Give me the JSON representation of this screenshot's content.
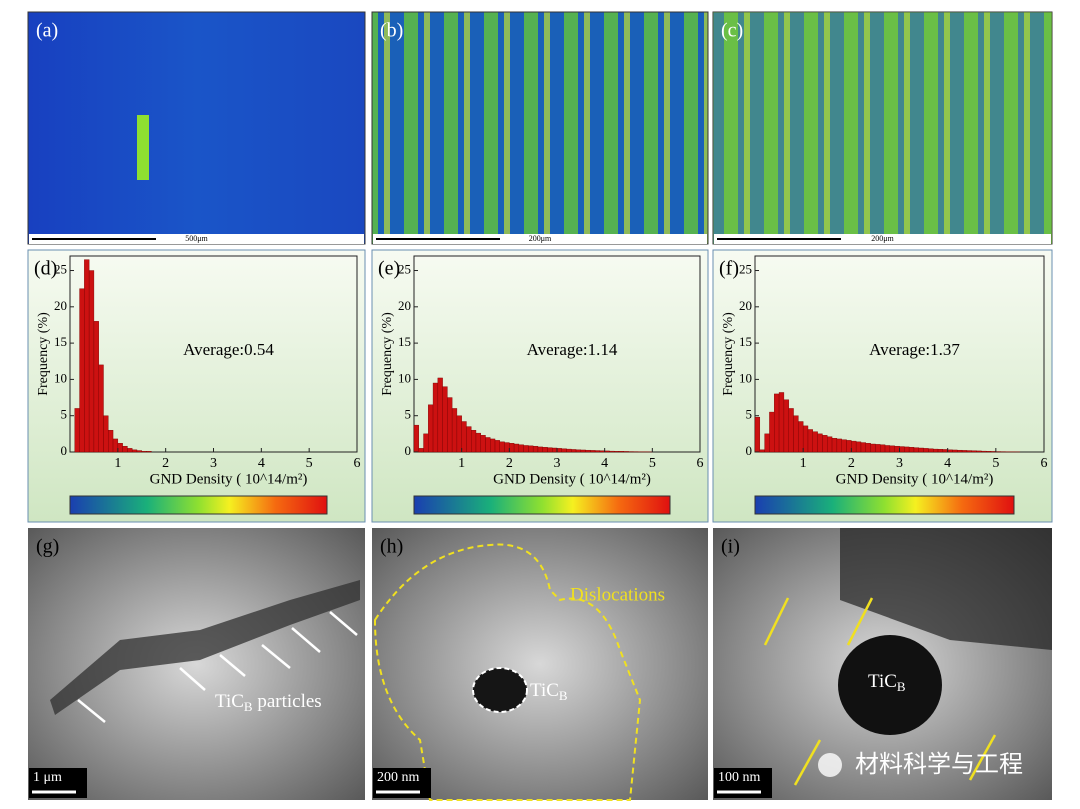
{
  "chart_data": [
    {
      "type": "histogram",
      "panel_label": "(d)",
      "y_label": "Frequency (%)",
      "x_label": "GND Density ( 10^14/m²)",
      "annotation": "Average:0.54",
      "color": "#cc1111",
      "bins": [
        0,
        0.1,
        0.2,
        0.3,
        0.4,
        0.5,
        0.6,
        0.7,
        0.8,
        0.9,
        1,
        1.1,
        1.2,
        1.3,
        1.4,
        1.5,
        1.6,
        1.7,
        1.8,
        1.9,
        2,
        2.1,
        2.2,
        2.3,
        2.4,
        2.5,
        2.6,
        2.7,
        2.8,
        2.9,
        3,
        3.1,
        3.2,
        3.3,
        3.4,
        3.5,
        3.6,
        3.7,
        3.8,
        3.9,
        4,
        4.1,
        4.2,
        4.3,
        4.4,
        4.5,
        4.6,
        4.7,
        4.8,
        4.9,
        5,
        5.1,
        5.2,
        5.3,
        5.4,
        5.5,
        5.6,
        5.7,
        5.8,
        5.9,
        6
      ],
      "values": [
        0,
        6,
        22.5,
        26.5,
        25,
        18,
        12,
        5,
        3,
        1.8,
        1.2,
        0.8,
        0.5,
        0.3,
        0.2,
        0.1,
        0.1,
        0,
        0,
        0,
        0,
        0,
        0,
        0,
        0,
        0,
        0,
        0,
        0,
        0,
        0,
        0,
        0,
        0,
        0,
        0,
        0,
        0,
        0,
        0,
        0,
        0,
        0,
        0,
        0,
        0,
        0,
        0,
        0,
        0,
        0,
        0,
        0,
        0,
        0,
        0,
        0,
        0,
        0,
        0
      ],
      "xlim": [
        0,
        6
      ],
      "xticks": [
        1,
        2,
        3,
        4,
        5,
        6
      ],
      "ylim": [
        0,
        27
      ],
      "yticks": [
        0,
        5,
        10,
        15,
        20,
        25
      ]
    },
    {
      "type": "histogram",
      "panel_label": "(e)",
      "y_label": "Frequency (%)",
      "x_label": "GND Density ( 10^14/m²)",
      "annotation": "Average:1.14",
      "color": "#cc1111",
      "bins": [
        0,
        0.1,
        0.2,
        0.3,
        0.4,
        0.5,
        0.6,
        0.7,
        0.8,
        0.9,
        1,
        1.1,
        1.2,
        1.3,
        1.4,
        1.5,
        1.6,
        1.7,
        1.8,
        1.9,
        2,
        2.1,
        2.2,
        2.3,
        2.4,
        2.5,
        2.6,
        2.7,
        2.8,
        2.9,
        3,
        3.1,
        3.2,
        3.3,
        3.4,
        3.5,
        3.6,
        3.7,
        3.8,
        3.9,
        4,
        4.1,
        4.2,
        4.3,
        4.4,
        4.5,
        4.6,
        4.7,
        4.8,
        4.9,
        5,
        5.1,
        5.2,
        5.3,
        5.4,
        5.5,
        5.6,
        5.7,
        5.8,
        5.9,
        6
      ],
      "values": [
        3.7,
        0.5,
        2.5,
        6.5,
        9.5,
        10.2,
        9,
        7.5,
        6,
        5,
        4.2,
        3.5,
        3,
        2.6,
        2.3,
        2,
        1.8,
        1.6,
        1.4,
        1.3,
        1.2,
        1.1,
        1,
        0.9,
        0.85,
        0.8,
        0.7,
        0.65,
        0.6,
        0.55,
        0.5,
        0.45,
        0.4,
        0.35,
        0.3,
        0.28,
        0.25,
        0.22,
        0.2,
        0.18,
        0.15,
        0.12,
        0.1,
        0.1,
        0.08,
        0.06,
        0.05,
        0.04,
        0.03,
        0.02,
        0,
        0,
        0,
        0,
        0,
        0,
        0,
        0,
        0,
        0
      ],
      "xlim": [
        0,
        6
      ],
      "xticks": [
        1,
        2,
        3,
        4,
        5,
        6
      ],
      "ylim": [
        0,
        27
      ],
      "yticks": [
        0,
        5,
        10,
        15,
        20,
        25
      ]
    },
    {
      "type": "histogram",
      "panel_label": "(f)",
      "y_label": "Frequency (%)",
      "x_label": "GND Density ( 10^14/m²)",
      "annotation": "Average:1.37",
      "color": "#cc1111",
      "bins": [
        0,
        0.1,
        0.2,
        0.3,
        0.4,
        0.5,
        0.6,
        0.7,
        0.8,
        0.9,
        1,
        1.1,
        1.2,
        1.3,
        1.4,
        1.5,
        1.6,
        1.7,
        1.8,
        1.9,
        2,
        2.1,
        2.2,
        2.3,
        2.4,
        2.5,
        2.6,
        2.7,
        2.8,
        2.9,
        3,
        3.1,
        3.2,
        3.3,
        3.4,
        3.5,
        3.6,
        3.7,
        3.8,
        3.9,
        4,
        4.1,
        4.2,
        4.3,
        4.4,
        4.5,
        4.6,
        4.7,
        4.8,
        4.9,
        5,
        5.1,
        5.2,
        5.3,
        5.4,
        5.5,
        5.6,
        5.7,
        5.8,
        5.9,
        6
      ],
      "values": [
        4.8,
        0.3,
        2.5,
        5.5,
        8,
        8.2,
        7.2,
        6,
        5,
        4.2,
        3.6,
        3.1,
        2.8,
        2.5,
        2.3,
        2.1,
        1.9,
        1.8,
        1.7,
        1.6,
        1.5,
        1.4,
        1.3,
        1.2,
        1.1,
        1.05,
        1,
        0.9,
        0.85,
        0.8,
        0.75,
        0.7,
        0.65,
        0.6,
        0.55,
        0.5,
        0.45,
        0.4,
        0.38,
        0.35,
        0.3,
        0.28,
        0.25,
        0.22,
        0.2,
        0.18,
        0.15,
        0.12,
        0.1,
        0.08,
        0.06,
        0.05,
        0.04,
        0.03,
        0.02,
        0,
        0,
        0,
        0,
        0
      ],
      "xlim": [
        0,
        6
      ],
      "xticks": [
        1,
        2,
        3,
        4,
        5,
        6
      ],
      "ylim": [
        0,
        27
      ],
      "yticks": [
        0,
        5,
        10,
        15,
        20,
        25
      ]
    }
  ],
  "image_panels": [
    {
      "label": "(a)",
      "scale_bar": "500μm"
    },
    {
      "label": "(b)",
      "scale_bar": "200μm"
    },
    {
      "label": "(c)",
      "scale_bar": "200μm"
    },
    {
      "label": "(g)",
      "scale_bar": "1 μm",
      "annotation": {
        "text": "TiC",
        "subscript": "B",
        "suffix": " particles"
      }
    },
    {
      "label": "(h)",
      "scale_bar": "200 nm",
      "annotation": {
        "text": "TiC",
        "subscript": "B"
      },
      "note": "Dislocations"
    },
    {
      "label": "(i)",
      "scale_bar": "100 nm",
      "annotation": {
        "text": "TiC",
        "subscript": "B"
      }
    }
  ],
  "watermark": "材料科学与工程"
}
